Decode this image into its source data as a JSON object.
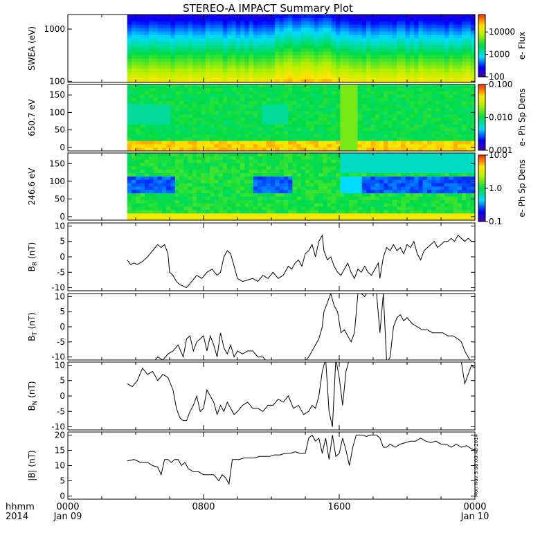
{
  "title": "STEREO-A IMPACT Summary Plot",
  "stamp": "Mon Nov  5 08:00:48 2014",
  "time_axis": {
    "ticks": [
      {
        "hour": 0,
        "label": "0000",
        "sublabel": "Jan 09"
      },
      {
        "hour": 8,
        "label": "0800",
        "sublabel": ""
      },
      {
        "hour": 16,
        "label": "1600",
        "sublabel": ""
      },
      {
        "hour": 24,
        "label": "0000",
        "sublabel": "Jan 10"
      }
    ],
    "left_label_1": "hhmm",
    "left_label_2": "2014",
    "range_hours": [
      0,
      24
    ],
    "data_start_hour": 3.5
  },
  "chart_data": [
    {
      "id": "swea",
      "type": "heatmap",
      "ylabel": "SWEA (eV)",
      "yscale": "log",
      "ylim": [
        95,
        1900
      ],
      "yticks": [
        100,
        1000
      ],
      "ytick_labels": [
        "100",
        "1000"
      ],
      "colorbar": {
        "label": "e- Flux",
        "scale": "log",
        "range": [
          100,
          60000
        ],
        "ticks": [
          100,
          1000,
          10000
        ],
        "tick_labels": [
          "100",
          "1000",
          "10000"
        ]
      }
    },
    {
      "id": "pad650",
      "type": "heatmap",
      "ylabel": "650.7 eV",
      "yscale": "linear",
      "ylim": [
        -10,
        180
      ],
      "yticks": [
        0,
        50,
        100,
        150
      ],
      "ytick_labels": [
        "0",
        "50",
        "100",
        "150"
      ],
      "colorbar": {
        "label": "e- Ph Sp Dens",
        "scale": "log",
        "range": [
          0.001,
          0.1
        ],
        "ticks": [
          0.001,
          0.01,
          0.1
        ],
        "tick_labels": [
          "0.001",
          "0.010",
          "0.100"
        ]
      }
    },
    {
      "id": "pad246",
      "type": "heatmap",
      "ylabel": "246.6 eV",
      "yscale": "linear",
      "ylim": [
        -10,
        180
      ],
      "yticks": [
        0,
        50,
        100,
        150
      ],
      "ytick_labels": [
        "0",
        "50",
        "100",
        "150"
      ],
      "colorbar": {
        "label": "e- Ph Sp Dens",
        "scale": "log",
        "range": [
          0.1,
          10
        ],
        "ticks": [
          0.1,
          1,
          10
        ],
        "tick_labels": [
          "0.1",
          "1.0",
          "10.0"
        ]
      }
    },
    {
      "id": "br",
      "type": "line",
      "ylabel_main": "B",
      "ylabel_sub": "R",
      "ylabel_tail": " (nT)",
      "ylim": [
        -11,
        11
      ],
      "yticks": [
        -10,
        -5,
        0,
        5,
        10
      ],
      "ytick_labels": [
        "-10",
        "-5",
        "0",
        "5",
        "10"
      ],
      "x": [
        3.5,
        3.7,
        3.9,
        4.1,
        4.4,
        4.7,
        5.0,
        5.3,
        5.5,
        5.7,
        5.9,
        6.0,
        6.2,
        6.4,
        6.6,
        6.8,
        7.0,
        7.3,
        7.6,
        7.9,
        8.2,
        8.5,
        8.8,
        9.0,
        9.2,
        9.4,
        9.6,
        9.8,
        10.0,
        10.3,
        10.6,
        10.9,
        11.2,
        11.5,
        11.8,
        12.1,
        12.4,
        12.7,
        13.0,
        13.2,
        13.4,
        13.6,
        13.8,
        14.0,
        14.2,
        14.4,
        14.6,
        14.8,
        15.0,
        15.1,
        15.3,
        15.5,
        15.7,
        15.9,
        16.1,
        16.3,
        16.5,
        16.7,
        16.9,
        17.1,
        17.3,
        17.5,
        17.7,
        17.9,
        18.1,
        18.3,
        18.4,
        18.6,
        18.8,
        19.0,
        19.2,
        19.4,
        19.6,
        19.8,
        20.0,
        20.2,
        20.4,
        20.6,
        20.8,
        21.0,
        21.2,
        21.4,
        21.6,
        21.8,
        22.0,
        22.2,
        22.4,
        22.6,
        22.8,
        23.0,
        23.2,
        23.4,
        23.6,
        23.8,
        24.0
      ],
      "values": [
        -1,
        -2.5,
        -2,
        -2.5,
        -1.5,
        0,
        2,
        4,
        3,
        4,
        1,
        -5,
        -6,
        -8,
        -9,
        -9.5,
        -10,
        -8,
        -6,
        -7,
        -5,
        -4,
        -6,
        -5,
        0,
        2,
        1,
        -3,
        -7,
        -8,
        -7.5,
        -7,
        -8,
        -6,
        -7,
        -5,
        -7,
        -6,
        -3,
        -4,
        -2,
        -1,
        -3,
        1,
        2,
        4,
        0,
        5,
        7,
        2,
        -1,
        0,
        -3,
        -5,
        -6,
        -4,
        -2,
        -5,
        -7,
        -4,
        -5,
        -3,
        -5,
        -6,
        -4,
        -2,
        -7,
        0,
        3,
        2,
        4,
        2,
        3,
        1,
        4,
        3,
        5,
        1,
        -1,
        2,
        3,
        4,
        5,
        3,
        4,
        5,
        5,
        6,
        5,
        7,
        6,
        5,
        6,
        5,
        5
      ]
    },
    {
      "id": "bt",
      "type": "line",
      "ylabel_main": "B",
      "ylabel_sub": "T",
      "ylabel_tail": " (nT)",
      "ylim": [
        -11,
        11
      ],
      "yticks": [
        -10,
        -5,
        0,
        5,
        10
      ],
      "ytick_labels": [
        "-10",
        "-5",
        "0",
        "5",
        "10"
      ],
      "x": [
        3.5,
        4.0,
        4.5,
        5.0,
        5.3,
        5.6,
        5.9,
        6.2,
        6.5,
        6.8,
        7.0,
        7.2,
        7.4,
        7.6,
        7.8,
        8.0,
        8.2,
        8.4,
        8.6,
        8.8,
        9.0,
        9.2,
        9.4,
        9.6,
        9.8,
        10.0,
        10.3,
        10.6,
        10.9,
        11.2,
        11.5,
        11.8,
        12.1,
        12.4,
        12.7,
        13.0,
        13.3,
        13.6,
        13.9,
        14.2,
        14.4,
        14.6,
        14.8,
        15.0,
        15.1,
        15.3,
        15.5,
        15.7,
        15.9,
        16.1,
        16.3,
        16.5,
        16.7,
        16.9,
        17.1,
        17.3,
        17.5,
        17.6,
        17.8,
        18.0,
        18.2,
        18.4,
        18.6,
        18.8,
        19.0,
        19.2,
        19.4,
        19.6,
        19.8,
        20.0,
        20.3,
        20.6,
        20.9,
        21.2,
        21.5,
        21.8,
        22.1,
        22.4,
        22.7,
        23.0,
        23.2,
        23.4,
        23.6,
        23.8,
        24.0
      ],
      "values": [
        -12,
        -12,
        -12,
        -12,
        -10,
        -11,
        -9,
        -8,
        -6,
        -10,
        -4,
        -3,
        -8,
        -5,
        -4,
        -3,
        -8,
        -3,
        -6,
        -10,
        -2,
        -7,
        -9,
        -6,
        -10,
        -8,
        -9,
        -8,
        -8,
        -10,
        -10,
        -12,
        -12,
        -12,
        -12,
        -12,
        -12,
        -12,
        -12,
        -10,
        -8,
        -6,
        -4,
        0,
        5,
        8,
        11,
        7,
        5,
        -2,
        -1,
        -3,
        -5,
        -2,
        11,
        11,
        10,
        11,
        11,
        11,
        11,
        -2,
        11,
        -12,
        -10,
        0,
        3,
        4,
        2,
        3,
        1,
        0,
        -1,
        -1,
        -2,
        -2,
        -2,
        -3,
        -3,
        -4,
        -5,
        -8,
        -10,
        -12,
        -12
      ]
    },
    {
      "id": "bn",
      "type": "line",
      "ylabel_main": "B",
      "ylabel_sub": "N",
      "ylabel_tail": " (nT)",
      "ylim": [
        -11,
        11
      ],
      "yticks": [
        -10,
        -5,
        0,
        5,
        10
      ],
      "ytick_labels": [
        "-10",
        "-5",
        "0",
        "5",
        "10"
      ],
      "x": [
        3.5,
        3.8,
        4.1,
        4.4,
        4.7,
        5.0,
        5.3,
        5.6,
        5.9,
        6.2,
        6.4,
        6.6,
        6.8,
        7.0,
        7.2,
        7.4,
        7.6,
        7.8,
        8.0,
        8.2,
        8.4,
        8.6,
        8.8,
        9.0,
        9.2,
        9.4,
        9.6,
        9.8,
        10.0,
        10.3,
        10.6,
        10.9,
        11.2,
        11.5,
        11.8,
        12.1,
        12.4,
        12.7,
        13.0,
        13.3,
        13.6,
        13.9,
        14.2,
        14.4,
        14.6,
        14.8,
        15.0,
        15.2,
        15.4,
        15.6,
        15.8,
        16.0,
        16.2,
        16.4,
        16.6,
        16.8,
        17.0,
        17.2,
        17.4,
        17.6,
        17.8,
        18.0,
        18.2,
        18.4,
        18.6,
        18.8,
        19.0,
        19.3,
        19.6,
        19.9,
        20.2,
        20.5,
        20.8,
        21.1,
        21.4,
        21.7,
        22.0,
        22.3,
        22.6,
        22.9,
        23.2,
        23.4,
        23.6,
        23.8,
        24.0
      ],
      "values": [
        4,
        3,
        5,
        9,
        7,
        8,
        5,
        7,
        6,
        2,
        -4,
        -7,
        -8,
        -8,
        -5,
        -3,
        0,
        -5,
        -4,
        2,
        0,
        -2,
        -6,
        -3,
        -5,
        -2,
        -4,
        -6,
        -5,
        -3,
        -2,
        -4,
        -4,
        -5,
        -3,
        -3,
        -1,
        -2,
        0,
        -4,
        -3,
        -6,
        -5,
        -3,
        -4,
        0,
        8,
        12,
        -5,
        -10,
        12,
        6,
        -3,
        8,
        12,
        12,
        12,
        12,
        12,
        11,
        12,
        12,
        12,
        12,
        11,
        11,
        11,
        12,
        12,
        11,
        12,
        12,
        12,
        12,
        12,
        12,
        12,
        12,
        12,
        12,
        11,
        4,
        7,
        10,
        9
      ]
    },
    {
      "id": "bmag",
      "type": "line",
      "ylabel_main": "|B| (nT)",
      "ylim": [
        -1,
        21
      ],
      "yticks": [
        0,
        5,
        10,
        15,
        20
      ],
      "ytick_labels": [
        "0",
        "5",
        "10",
        "15",
        "20"
      ],
      "x": [
        3.5,
        3.9,
        4.3,
        4.7,
        5.0,
        5.3,
        5.5,
        5.7,
        5.9,
        6.1,
        6.3,
        6.5,
        6.7,
        6.9,
        7.1,
        7.4,
        7.7,
        8.0,
        8.3,
        8.6,
        8.9,
        9.1,
        9.3,
        9.5,
        9.7,
        9.9,
        10.1,
        10.4,
        10.7,
        11.0,
        11.3,
        11.6,
        11.9,
        12.2,
        12.5,
        12.8,
        13.1,
        13.4,
        13.7,
        14.0,
        14.2,
        14.4,
        14.6,
        14.8,
        15.0,
        15.2,
        15.4,
        15.6,
        15.8,
        16.0,
        16.2,
        16.4,
        16.6,
        16.8,
        17.0,
        17.2,
        17.4,
        17.6,
        17.8,
        18.0,
        18.2,
        18.4,
        18.6,
        18.8,
        19.0,
        19.3,
        19.6,
        19.9,
        20.2,
        20.5,
        20.8,
        21.1,
        21.4,
        21.7,
        22.0,
        22.3,
        22.6,
        22.9,
        23.2,
        23.5,
        23.8,
        24.0
      ],
      "values": [
        11.5,
        12,
        11,
        11,
        10,
        9.5,
        7,
        12,
        12,
        11,
        12,
        12,
        10,
        11,
        9,
        8,
        8,
        7,
        7,
        7,
        5,
        7,
        6,
        4,
        12,
        12,
        12,
        12.5,
        12.5,
        12.5,
        13,
        13,
        13,
        13.5,
        13.5,
        14,
        14,
        14.5,
        14,
        14,
        19,
        20,
        18,
        19,
        14,
        19,
        12,
        20,
        13,
        14,
        19,
        15,
        10,
        16,
        20,
        20,
        20,
        19.5,
        20,
        20,
        20,
        19,
        16,
        16,
        17,
        16,
        17,
        17.5,
        18,
        18,
        19,
        18,
        17.5,
        18,
        17,
        17,
        16,
        17,
        16,
        16.5,
        15.5,
        15
      ]
    }
  ]
}
